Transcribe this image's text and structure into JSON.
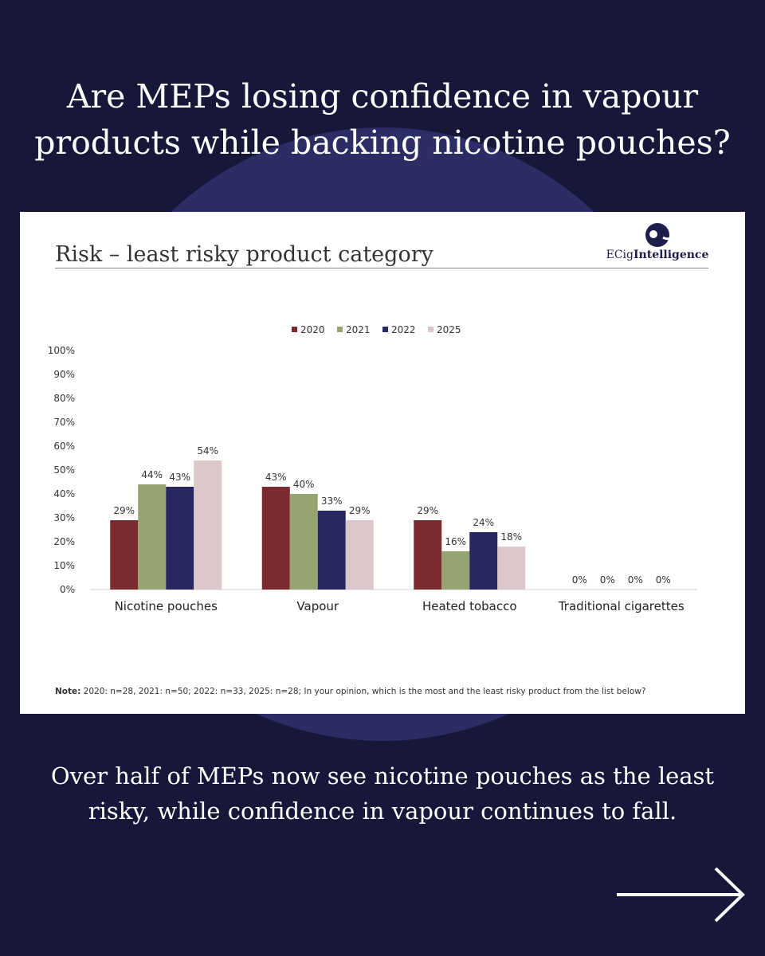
{
  "headline": {
    "line1": "Are MEPs losing confidence in vapour",
    "line2": "products while backing nicotine pouches?"
  },
  "card": {
    "logo_prefix": "ECig",
    "logo_suffix": "Intelligence",
    "note_label": "Note:",
    "note_text": " 2020: n=28, 2021: n=50; 2022: n=33, 2025: n=28; In your opinion, which is the most and the least risky product from the list below?"
  },
  "caption": {
    "line1": "Over half of MEPs now see nicotine pouches as the least",
    "line2": "risky, while confidence in vapour continues to fall."
  },
  "icons": {
    "logo": "ecig-intelligence-logo-icon",
    "next": "arrow-right-icon"
  },
  "colors": {
    "background": "#17173a",
    "halo": "#2d2d66"
  },
  "chart_data": {
    "type": "bar",
    "title": "Risk – least risky product category",
    "categories": [
      "Nicotine pouches",
      "Vapour",
      "Heated tobacco",
      "Traditional cigarettes"
    ],
    "series": [
      {
        "name": "2020",
        "color": "#7b2b30",
        "values": [
          29,
          43,
          29,
          0
        ]
      },
      {
        "name": "2021",
        "color": "#96a472",
        "values": [
          44,
          40,
          16,
          0
        ]
      },
      {
        "name": "2022",
        "color": "#282860",
        "values": [
          43,
          33,
          24,
          0
        ]
      },
      {
        "name": "2025",
        "color": "#dcc8cb",
        "values": [
          54,
          29,
          18,
          0
        ]
      }
    ],
    "ylim": [
      0,
      100
    ],
    "yticks": [
      "0%",
      "10%",
      "20%",
      "30%",
      "40%",
      "50%",
      "60%",
      "70%",
      "80%",
      "90%",
      "100%"
    ],
    "value_suffix": "%",
    "legend_position": "top-center",
    "grid": false
  }
}
